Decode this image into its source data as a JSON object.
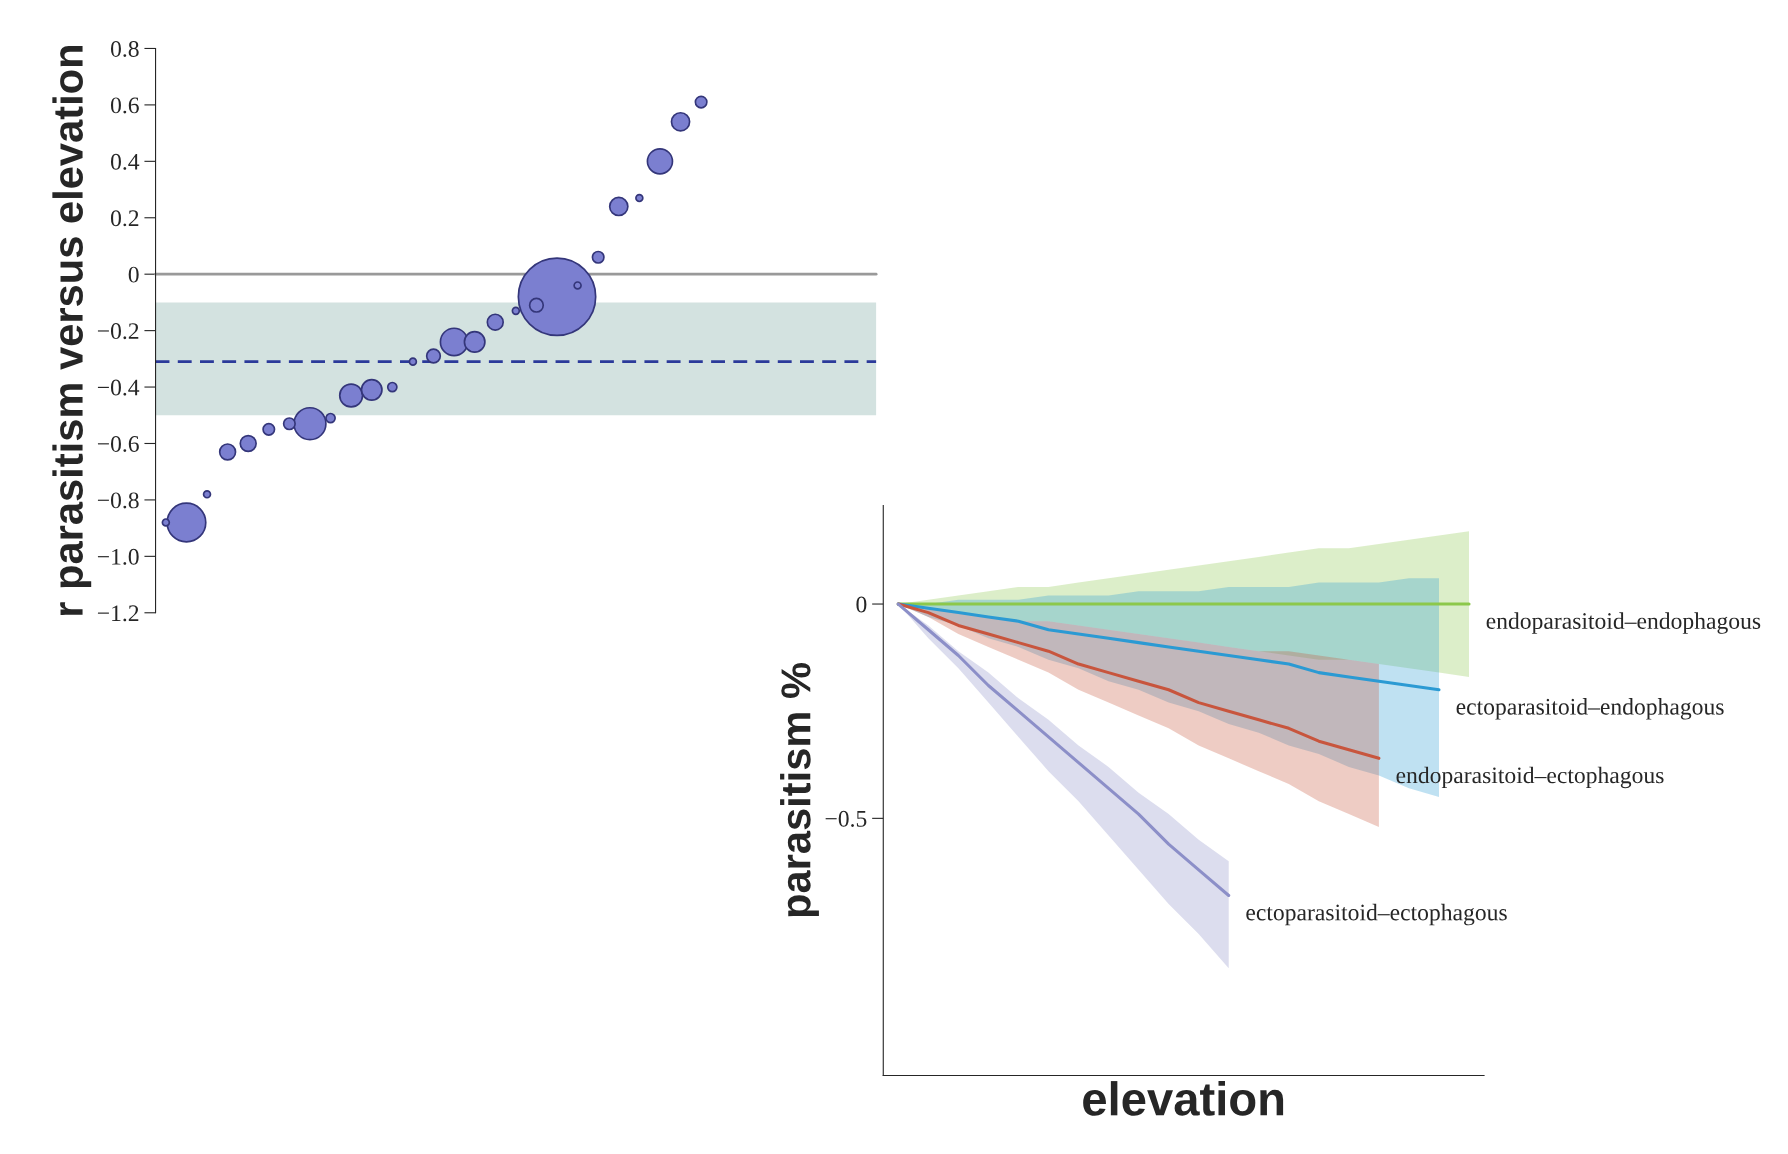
{
  "chart_data": [
    {
      "type": "bubble",
      "ylabel": "r parasitism versus elevation",
      "categories": [
        null,
        null,
        null,
        null,
        null,
        null,
        null,
        null,
        null,
        null,
        null,
        null,
        null,
        null,
        null,
        null,
        null,
        null,
        null,
        null,
        null,
        null,
        null,
        null,
        null,
        null,
        null,
        null,
        null,
        null,
        null,
        null,
        null,
        null,
        null
      ],
      "values": [
        -0.88,
        -0.88,
        -0.78,
        -0.63,
        -0.6,
        -0.55,
        -0.53,
        -0.53,
        -0.51,
        -0.43,
        -0.41,
        -0.4,
        -0.31,
        -0.29,
        -0.24,
        -0.24,
        -0.17,
        -0.13,
        -0.11,
        -0.08,
        -0.04,
        0.06,
        0.24,
        0.27,
        0.4,
        0.54,
        0.61,
        null,
        null,
        null,
        null,
        null,
        null,
        null,
        null
      ],
      "sizes": [
        0.008,
        0.25,
        0.008,
        0.042,
        0.042,
        0.022,
        0.022,
        0.17,
        0.014,
        0.087,
        0.07,
        0.014,
        0.008,
        0.031,
        0.125,
        0.07,
        0.042,
        0.008,
        0.031,
        1,
        0.008,
        0.022,
        0.055,
        0.008,
        0.105,
        0.055,
        0.022,
        null,
        null,
        null,
        null,
        null,
        null,
        null,
        null
      ],
      "color": "#7b7fd0",
      "ylim": [
        -1.2,
        0.8
      ],
      "yticks": [
        {
          "value": 0.8,
          "label": "0.8"
        },
        {
          "value": 0.6,
          "label": "0.6"
        },
        {
          "value": 0.4,
          "label": "0.4"
        },
        {
          "value": 0.2,
          "label": "0.2"
        },
        {
          "value": 0,
          "label": "0"
        },
        {
          "value": -0.2,
          "label": "−0.2"
        },
        {
          "value": -0.4,
          "label": "−0.4"
        },
        {
          "value": -0.6,
          "label": "−0.6"
        },
        {
          "value": -0.8,
          "label": "−0.8"
        },
        {
          "value": -1.0,
          "label": "−1.0"
        },
        {
          "value": -1.2,
          "label": "−1.2"
        }
      ],
      "ref_lines": [
        {
          "axis": "y",
          "value": 0,
          "color": "#999999",
          "line_style": "solid"
        },
        {
          "axis": "y",
          "value": -0.31,
          "color": "#2b3a9a",
          "line_style": "dashed"
        }
      ],
      "bands": [
        {
          "axis": "y",
          "from": -0.5,
          "to": -0.1,
          "color": "#d3e2e0"
        }
      ],
      "tick_labels": "y"
    },
    {
      "type": "line",
      "xlabel": "elevation",
      "ylabel": "parasitism %",
      "categories": [
        null,
        null,
        null,
        null,
        null,
        null,
        null,
        null,
        null,
        null,
        null,
        null,
        null,
        null,
        null,
        null,
        null,
        null,
        null,
        null
      ],
      "series": [
        {
          "name": "endoparasitoid–endophagous",
          "color": "#8cc84b",
          "values": [
            0,
            0,
            0,
            0,
            0,
            0,
            0,
            0,
            0,
            0,
            0,
            0,
            0,
            0,
            0,
            0,
            0,
            0,
            0,
            0
          ],
          "lower": [
            0,
            -0.01,
            -0.02,
            -0.03,
            -0.04,
            -0.04,
            -0.05,
            -0.06,
            -0.07,
            -0.08,
            -0.09,
            -0.1,
            -0.11,
            -0.12,
            -0.13,
            -0.13,
            -0.14,
            -0.15,
            -0.16,
            -0.17
          ],
          "upper": [
            0,
            0.01,
            0.02,
            0.03,
            0.04,
            0.04,
            0.05,
            0.06,
            0.07,
            0.08,
            0.09,
            0.1,
            0.11,
            0.12,
            0.13,
            0.13,
            0.14,
            0.15,
            0.16,
            0.17
          ]
        },
        {
          "name": "ectoparasitoid–endophagous",
          "color": "#2b9ad3",
          "values": [
            0,
            -0.01,
            -0.02,
            -0.03,
            -0.04,
            -0.06,
            -0.07,
            -0.08,
            -0.09,
            -0.1,
            -0.11,
            -0.12,
            -0.13,
            -0.14,
            -0.16,
            -0.17,
            -0.18,
            -0.19,
            -0.2,
            null
          ],
          "lower": [
            0,
            -0.03,
            -0.05,
            -0.08,
            -0.1,
            -0.13,
            -0.15,
            -0.18,
            -0.2,
            -0.23,
            -0.25,
            -0.28,
            -0.3,
            -0.33,
            -0.35,
            -0.38,
            -0.4,
            -0.43,
            -0.45,
            null
          ],
          "upper": [
            0,
            0,
            0.01,
            0.01,
            0.01,
            0.02,
            0.02,
            0.02,
            0.03,
            0.03,
            0.03,
            0.04,
            0.04,
            0.04,
            0.05,
            0.05,
            0.05,
            0.06,
            0.06,
            null
          ]
        },
        {
          "name": "endoparasitoid–ectophagous",
          "color": "#c8553d",
          "values": [
            0,
            -0.02,
            -0.05,
            -0.07,
            -0.09,
            -0.11,
            -0.14,
            -0.16,
            -0.18,
            -0.2,
            -0.23,
            -0.25,
            -0.27,
            -0.29,
            -0.32,
            -0.34,
            -0.36,
            null,
            null,
            null
          ],
          "lower": [
            0,
            -0.03,
            -0.07,
            -0.1,
            -0.13,
            -0.16,
            -0.2,
            -0.23,
            -0.26,
            -0.29,
            -0.33,
            -0.36,
            -0.39,
            -0.42,
            -0.46,
            -0.49,
            -0.52,
            null,
            null,
            null
          ],
          "upper": [
            0,
            -0.01,
            -0.02,
            -0.03,
            -0.04,
            -0.04,
            -0.05,
            -0.06,
            -0.07,
            -0.08,
            -0.09,
            -0.1,
            -0.11,
            -0.11,
            -0.12,
            -0.13,
            -0.14,
            null,
            null,
            null
          ]
        },
        {
          "name": "ectoparasitoid–ectophagous",
          "color": "#8c8fc8",
          "values": [
            0,
            -0.06,
            -0.12,
            -0.19,
            -0.25,
            -0.31,
            -0.37,
            -0.43,
            -0.49,
            -0.56,
            -0.62,
            -0.68,
            null,
            null,
            null,
            null,
            null,
            null,
            null,
            null
          ],
          "lower": [
            0,
            -0.08,
            -0.15,
            -0.23,
            -0.31,
            -0.39,
            -0.46,
            -0.54,
            -0.62,
            -0.7,
            -0.77,
            -0.85,
            null,
            null,
            null,
            null,
            null,
            null,
            null,
            null
          ],
          "upper": [
            0,
            -0.05,
            -0.11,
            -0.16,
            -0.22,
            -0.27,
            -0.33,
            -0.38,
            -0.44,
            -0.49,
            -0.55,
            -0.6,
            null,
            null,
            null,
            null,
            null,
            null,
            null,
            null
          ]
        }
      ],
      "ylim": [
        -1.1,
        0.23
      ],
      "yticks": [
        {
          "value": 0,
          "label": "0"
        },
        {
          "value": -0.5,
          "label": "−0.5"
        }
      ],
      "tick_labels": "y"
    }
  ]
}
